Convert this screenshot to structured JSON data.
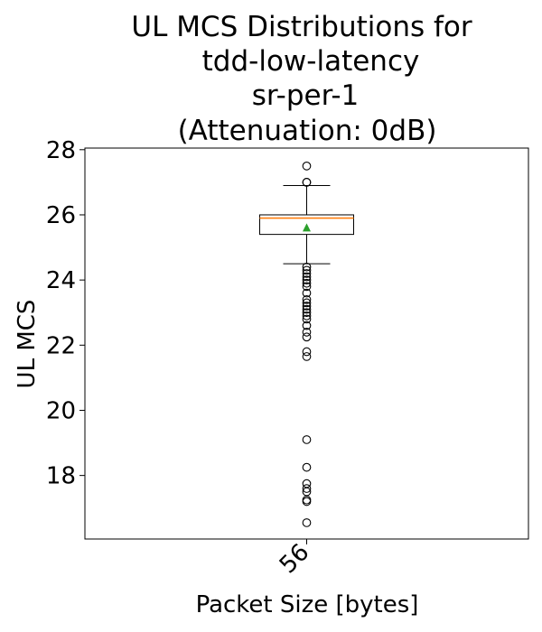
{
  "chart_data": {
    "type": "box",
    "title_lines": [
      "UL MCS Distributions for",
      "tdd-low-latency",
      "sr-per-1",
      "(Attenuation: 0dB)"
    ],
    "xlabel": "Packet Size [bytes]",
    "ylabel": "UL MCS",
    "ylim": [
      16.05,
      28.05
    ],
    "yticks": [
      18,
      20,
      22,
      24,
      26,
      28
    ],
    "categories": [
      "56"
    ],
    "boxes": [
      {
        "category": "56",
        "whisker_low": 24.5,
        "q1": 25.4,
        "median": 25.9,
        "q3": 26.0,
        "whisker_high": 26.9,
        "mean": 25.6,
        "outliers": [
          27.5,
          27.0,
          27.0,
          24.4,
          24.3,
          24.2,
          24.1,
          24.0,
          23.9,
          23.8,
          23.6,
          23.4,
          23.3,
          23.2,
          23.1,
          23.0,
          22.9,
          22.8,
          22.6,
          22.4,
          22.25,
          21.8,
          21.65,
          19.1,
          18.25,
          17.75,
          17.6,
          17.5,
          17.25,
          17.2,
          16.55
        ]
      }
    ],
    "colors": {
      "box": "#000000",
      "median": "#ff7f0e",
      "mean": "#2ca02c",
      "outlier": "#000000"
    },
    "grid": false,
    "xtick_rotation_deg": 45
  }
}
